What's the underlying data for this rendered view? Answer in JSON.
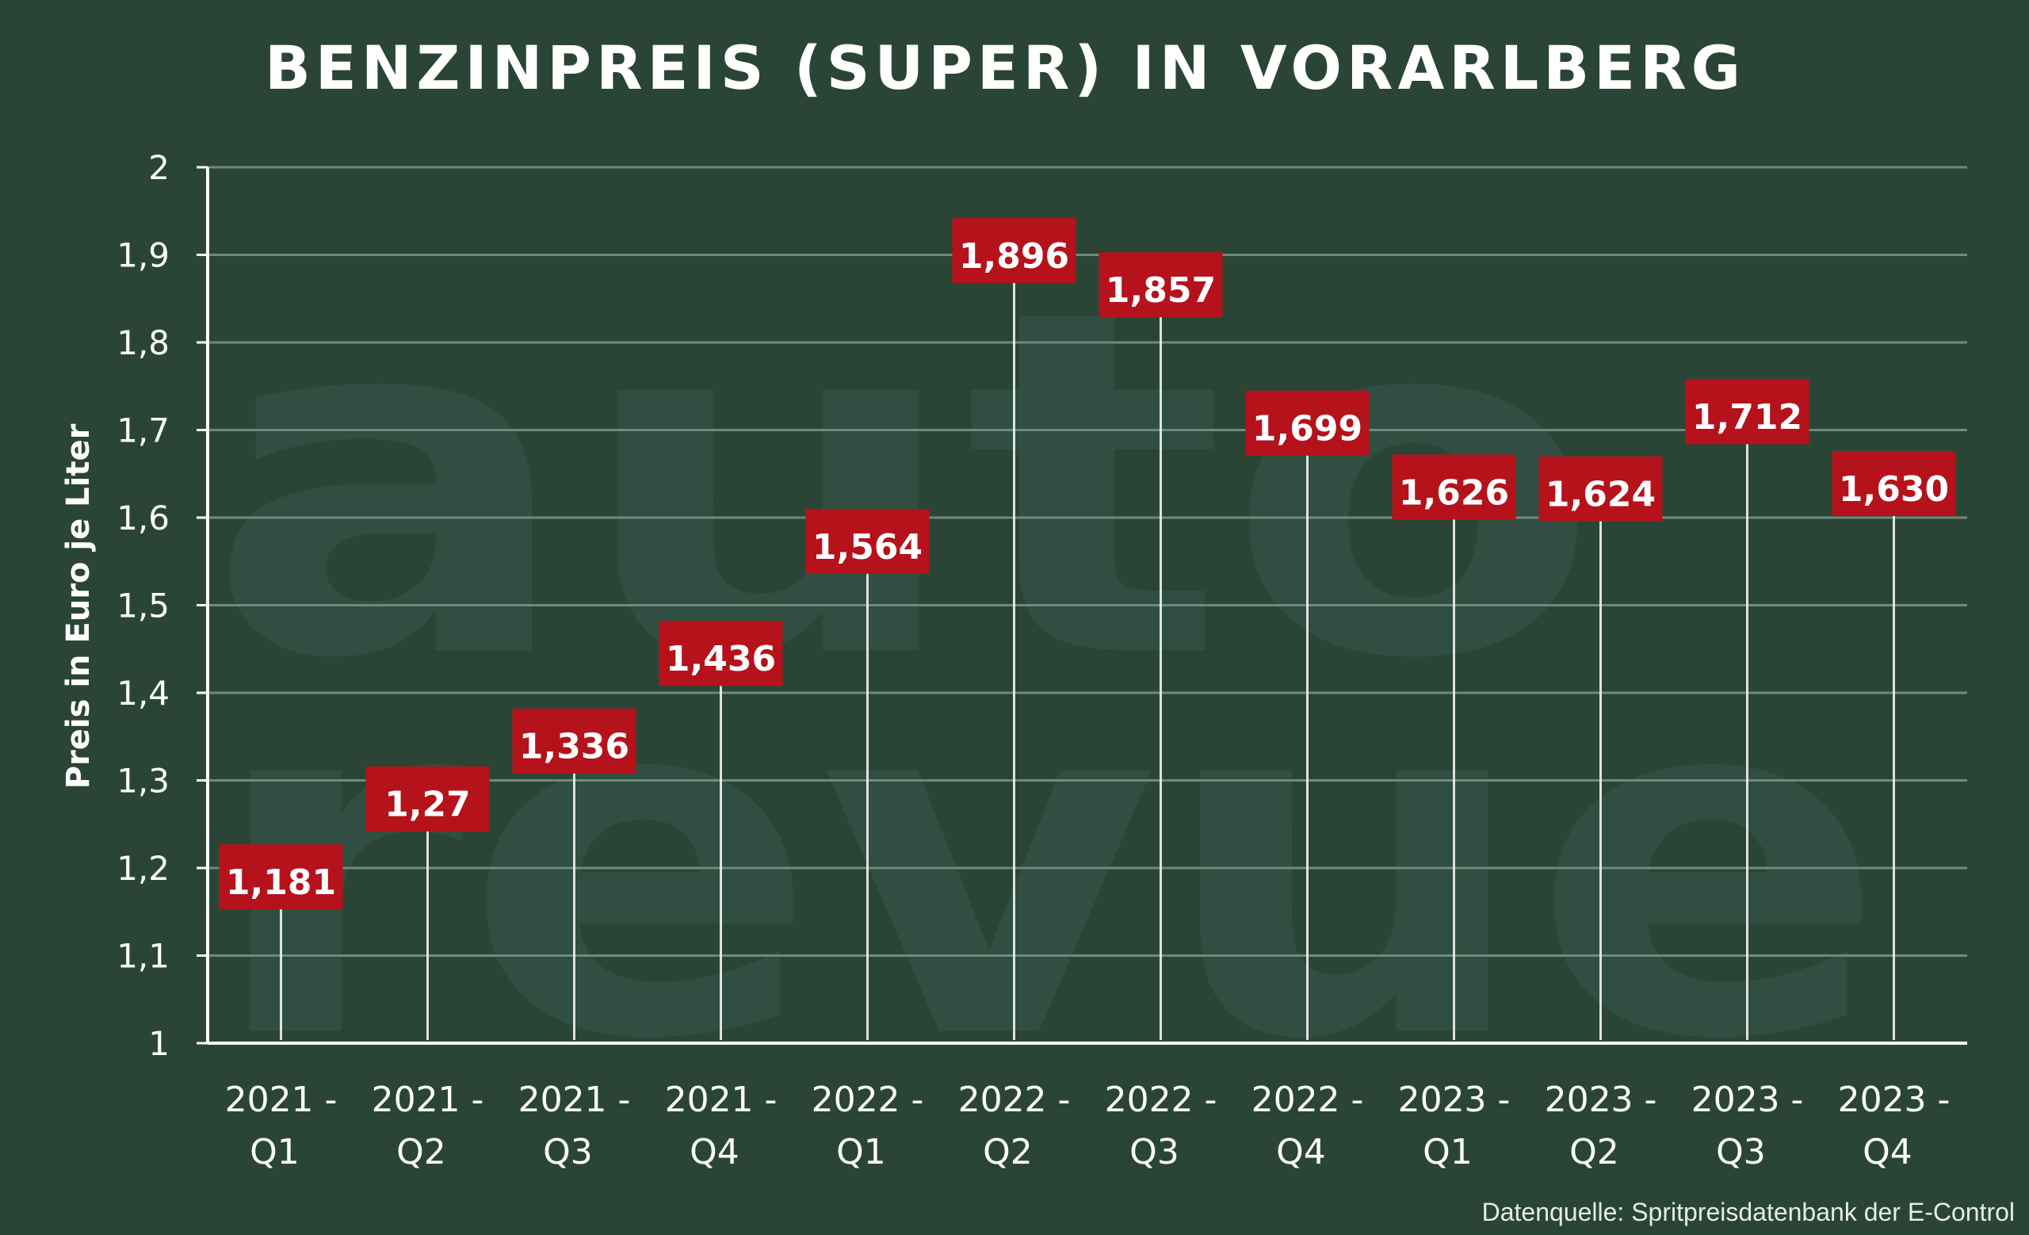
{
  "header": {
    "title": "BENZINPREIS (SUPER) IN VORARLBERG"
  },
  "footer": {
    "source": "Datenquelle: Spritpreisdatenbank der E-Control"
  },
  "watermark": {
    "line1": "auto",
    "line2": "revue"
  },
  "colors": {
    "background": "#2a4536",
    "label_box": "#b5121b",
    "grid": "#6f8a7d",
    "stem": "#f2f2f2",
    "text": "#ffffff"
  },
  "chart_data": {
    "type": "bar",
    "title": "BENZINPREIS (SUPER) IN VORARLBERG",
    "ylabel": "Preis in Euro je Liter",
    "xlabel": "",
    "ylim": [
      1,
      2
    ],
    "yticks": [
      "1",
      "1,1",
      "1,2",
      "1,3",
      "1,4",
      "1,5",
      "1,6",
      "1,7",
      "1,8",
      "1,9",
      "2"
    ],
    "ytick_values": [
      1,
      1.1,
      1.2,
      1.3,
      1.4,
      1.5,
      1.6,
      1.7,
      1.8,
      1.9,
      2
    ],
    "grid": true,
    "categories": [
      [
        "2021 -",
        "Q1"
      ],
      [
        "2021 -",
        "Q2"
      ],
      [
        "2021 -",
        "Q3"
      ],
      [
        "2021 -",
        "Q4"
      ],
      [
        "2022 -",
        "Q1"
      ],
      [
        "2022 -",
        "Q2"
      ],
      [
        "2022 -",
        "Q3"
      ],
      [
        "2022 -",
        "Q4"
      ],
      [
        "2023 -",
        "Q1"
      ],
      [
        "2023 -",
        "Q2"
      ],
      [
        "2023 -",
        "Q3"
      ],
      [
        "2023 -",
        "Q4"
      ]
    ],
    "values": [
      1.181,
      1.27,
      1.336,
      1.436,
      1.564,
      1.896,
      1.857,
      1.699,
      1.626,
      1.624,
      1.712,
      1.63
    ],
    "data_labels": [
      "1,181",
      "1,27",
      "1,336",
      "1,436",
      "1,564",
      "1,896",
      "1,857",
      "1,699",
      "1,626",
      "1,624",
      "1,712",
      "1,630"
    ]
  }
}
